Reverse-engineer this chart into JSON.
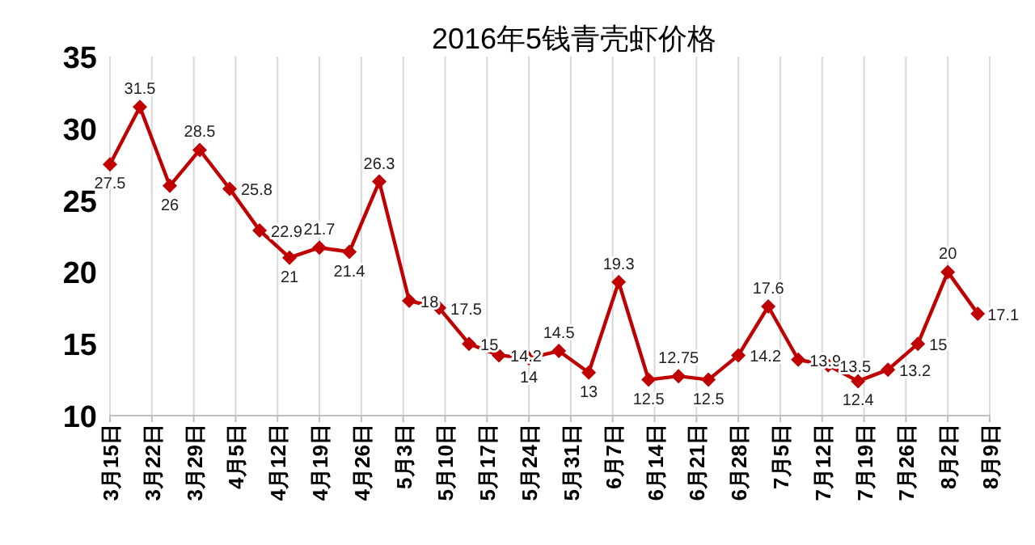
{
  "chart_data": {
    "type": "line",
    "title": "2016年5钱青壳虾价格",
    "x": [
      "--03-15",
      "--03-20",
      "--03-25",
      "--03-30",
      "--04-04",
      "--04-09",
      "--04-14",
      "--04-19",
      "--04-24",
      "--04-29",
      "--05-04",
      "--05-09",
      "--05-14",
      "--05-19",
      "--05-24",
      "--05-29",
      "--06-03",
      "--06-08",
      "--06-13",
      "--06-18",
      "--06-23",
      "--06-28",
      "--07-03",
      "--07-08",
      "--07-13",
      "--07-18",
      "--07-23",
      "--07-28",
      "--08-02",
      "--08-07"
    ],
    "series": [
      {
        "color": "#c00000",
        "values": [
          27.5,
          31.5,
          26,
          28.5,
          25.8,
          22.9,
          21,
          21.7,
          21.4,
          26.3,
          18,
          17.5,
          15,
          14.2,
          14,
          14.5,
          13,
          19.3,
          12.5,
          12.75,
          12.5,
          14.2,
          17.6,
          13.9,
          13.5,
          12.4,
          13.2,
          15,
          20,
          17.1
        ]
      }
    ],
    "xlim": [
      "--03-15",
      "--08-09"
    ],
    "xticks": [
      {
        "value": "--03-15",
        "label": "3月15日"
      },
      {
        "value": "--03-22",
        "label": "3月22日"
      },
      {
        "value": "--03-29",
        "label": "3月29日"
      },
      {
        "value": "--04-05",
        "label": "4月5日"
      },
      {
        "value": "--04-12",
        "label": "4月12日"
      },
      {
        "value": "--04-19",
        "label": "4月19日"
      },
      {
        "value": "--04-26",
        "label": "4月26日"
      },
      {
        "value": "--05-03",
        "label": "5月3日"
      },
      {
        "value": "--05-10",
        "label": "5月10日"
      },
      {
        "value": "--05-17",
        "label": "5月17日"
      },
      {
        "value": "--05-24",
        "label": "5月24日"
      },
      {
        "value": "--05-31",
        "label": "5月31日"
      },
      {
        "value": "--06-07",
        "label": "6月7日"
      },
      {
        "value": "--06-14",
        "label": "6月14日"
      },
      {
        "value": "--06-21",
        "label": "6月21日"
      },
      {
        "value": "--06-28",
        "label": "6月28日"
      },
      {
        "value": "--07-05",
        "label": "7月5日"
      },
      {
        "value": "--07-12",
        "label": "7月12日"
      },
      {
        "value": "--07-19",
        "label": "7月19日"
      },
      {
        "value": "--07-26",
        "label": "7月26日"
      },
      {
        "value": "--08-02",
        "label": "8月2日"
      },
      {
        "value": "--08-09",
        "label": "8月9日"
      }
    ],
    "ylim": [
      10,
      35
    ],
    "yticks": [
      10,
      15,
      20,
      25,
      30,
      35
    ],
    "grid": "x",
    "marker": "diamond",
    "line_style": "solid",
    "data_labels": true
  }
}
